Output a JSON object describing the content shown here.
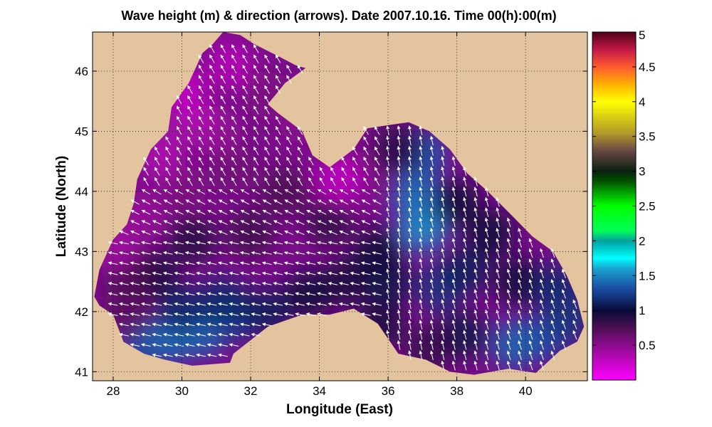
{
  "chart_data": {
    "type": "heatmap",
    "title": "Wave height (m) & direction (arrows). Date 2007.10.16. Time 00(h):00(m)",
    "xlabel": "Longitude (East)",
    "ylabel": "Latitude (North)",
    "xlim": [
      27.4,
      41.8
    ],
    "ylim": [
      40.85,
      46.65
    ],
    "x_ticks": [
      28,
      30,
      32,
      34,
      36,
      38,
      40
    ],
    "x_tick_labels": [
      "28",
      "30",
      "32",
      "34",
      "36",
      "38",
      "40"
    ],
    "y_ticks": [
      41,
      42,
      43,
      44,
      45,
      46
    ],
    "y_tick_labels": [
      "41",
      "42",
      "43",
      "44",
      "45",
      "46"
    ],
    "grid": true,
    "land_color": "#e3c49f",
    "colorbar": {
      "range": [
        0,
        5
      ],
      "ticks": [
        0.5,
        1,
        1.5,
        2,
        2.5,
        3,
        3.5,
        4,
        4.5,
        5
      ],
      "tick_labels": [
        "0.5",
        "1",
        "1.5",
        "2",
        "2.5",
        "3",
        "3.5",
        "4",
        "4.5",
        "5"
      ],
      "colormap": [
        {
          "v": 0.0,
          "c": "#ff00ff"
        },
        {
          "v": 0.4,
          "c": "#a30aa3"
        },
        {
          "v": 0.75,
          "c": "#4d0f52"
        },
        {
          "v": 1.0,
          "c": "#080b38"
        },
        {
          "v": 1.3,
          "c": "#1a4aa0"
        },
        {
          "v": 1.6,
          "c": "#1aa2d0"
        },
        {
          "v": 1.75,
          "c": "#00ffff"
        },
        {
          "v": 2.0,
          "c": "#00a0a0"
        },
        {
          "v": 2.15,
          "c": "#00ff55"
        },
        {
          "v": 2.5,
          "c": "#00ff00"
        },
        {
          "v": 2.85,
          "c": "#005500"
        },
        {
          "v": 3.0,
          "c": "#0a2010"
        },
        {
          "v": 3.3,
          "c": "#6b4a45"
        },
        {
          "v": 3.55,
          "c": "#b39a28"
        },
        {
          "v": 4.0,
          "c": "#ffff00"
        },
        {
          "v": 4.25,
          "c": "#ffb000"
        },
        {
          "v": 4.5,
          "c": "#ff5a30"
        },
        {
          "v": 4.75,
          "c": "#c21848"
        },
        {
          "v": 5.0,
          "c": "#4d0018"
        }
      ]
    },
    "sea_outline": [
      [
        27.45,
        42.25
      ],
      [
        27.6,
        42.7
      ],
      [
        28.0,
        43.2
      ],
      [
        28.4,
        43.45
      ],
      [
        28.6,
        43.8
      ],
      [
        28.7,
        44.2
      ],
      [
        29.1,
        44.7
      ],
      [
        29.6,
        45.0
      ],
      [
        29.7,
        45.4
      ],
      [
        30.2,
        45.8
      ],
      [
        30.6,
        46.3
      ],
      [
        30.9,
        46.45
      ],
      [
        31.2,
        46.65
      ],
      [
        31.7,
        46.6
      ],
      [
        32.1,
        46.45
      ],
      [
        32.8,
        46.25
      ],
      [
        33.3,
        46.1
      ],
      [
        33.6,
        46.05
      ],
      [
        33.0,
        45.8
      ],
      [
        32.5,
        45.45
      ],
      [
        32.8,
        45.3
      ],
      [
        33.5,
        45.0
      ],
      [
        33.8,
        44.6
      ],
      [
        34.3,
        44.4
      ],
      [
        35.0,
        44.7
      ],
      [
        35.4,
        45.05
      ],
      [
        36.0,
        45.1
      ],
      [
        36.6,
        45.15
      ],
      [
        37.2,
        45.0
      ],
      [
        37.8,
        44.7
      ],
      [
        38.3,
        44.3
      ],
      [
        38.9,
        44.0
      ],
      [
        39.6,
        43.6
      ],
      [
        40.2,
        43.25
      ],
      [
        40.8,
        43.0
      ],
      [
        41.2,
        42.6
      ],
      [
        41.5,
        42.2
      ],
      [
        41.7,
        41.75
      ],
      [
        41.5,
        41.5
      ],
      [
        41.0,
        41.35
      ],
      [
        40.3,
        40.98
      ],
      [
        39.5,
        41.05
      ],
      [
        38.5,
        40.95
      ],
      [
        37.8,
        41.0
      ],
      [
        37.1,
        41.2
      ],
      [
        36.3,
        41.3
      ],
      [
        35.7,
        41.8
      ],
      [
        35.0,
        42.05
      ],
      [
        34.3,
        41.95
      ],
      [
        33.5,
        41.95
      ],
      [
        32.5,
        41.75
      ],
      [
        31.5,
        41.3
      ],
      [
        31.4,
        41.15
      ],
      [
        30.3,
        41.1
      ],
      [
        29.5,
        41.2
      ],
      [
        28.9,
        41.3
      ],
      [
        28.3,
        41.5
      ],
      [
        28.0,
        41.95
      ],
      [
        27.6,
        42.1
      ]
    ],
    "wave_height_samples": [
      [
        29.0,
        41.5,
        1.35
      ],
      [
        29.8,
        41.55,
        1.4
      ],
      [
        30.6,
        41.65,
        1.4
      ],
      [
        31.5,
        41.9,
        1.25
      ],
      [
        30.0,
        42.05,
        1.15
      ],
      [
        31.2,
        42.2,
        1.15
      ],
      [
        32.5,
        42.0,
        1.1
      ],
      [
        33.7,
        42.3,
        1.0
      ],
      [
        34.8,
        42.5,
        0.95
      ],
      [
        36.0,
        42.5,
        1.05
      ],
      [
        37.0,
        43.4,
        1.55
      ],
      [
        36.8,
        43.9,
        1.45
      ],
      [
        37.0,
        44.6,
        1.35
      ],
      [
        36.3,
        44.7,
        0.9
      ],
      [
        37.5,
        42.4,
        1.2
      ],
      [
        38.3,
        42.7,
        1.1
      ],
      [
        39.0,
        43.3,
        1.0
      ],
      [
        39.8,
        42.5,
        1.0
      ],
      [
        40.6,
        41.6,
        1.3
      ],
      [
        39.7,
        41.45,
        1.4
      ],
      [
        38.2,
        41.6,
        1.05
      ],
      [
        40.9,
        42.4,
        1.15
      ],
      [
        41.3,
        41.9,
        1.2
      ],
      [
        37.2,
        41.4,
        0.85
      ],
      [
        35.8,
        41.8,
        0.95
      ],
      [
        30.3,
        43.2,
        0.9
      ],
      [
        29.2,
        42.6,
        0.95
      ],
      [
        28.4,
        42.6,
        0.75
      ],
      [
        28.0,
        43.1,
        0.4
      ],
      [
        28.8,
        43.6,
        0.45
      ],
      [
        30.0,
        44.0,
        0.55
      ],
      [
        31.5,
        44.4,
        0.6
      ],
      [
        33.0,
        44.0,
        0.75
      ],
      [
        32.0,
        43.3,
        0.8
      ],
      [
        34.3,
        43.5,
        0.85
      ],
      [
        35.0,
        44.3,
        0.6
      ],
      [
        34.6,
        44.2,
        0.25
      ],
      [
        31.0,
        45.0,
        0.45
      ],
      [
        30.3,
        45.2,
        0.35
      ],
      [
        30.0,
        45.7,
        0.25
      ],
      [
        31.4,
        46.1,
        0.3
      ],
      [
        32.5,
        45.6,
        0.55
      ],
      [
        29.4,
        44.6,
        0.35
      ],
      [
        28.4,
        42.0,
        0.7
      ],
      [
        35.7,
        43.0,
        1.0
      ],
      [
        38.0,
        43.8,
        1.0
      ],
      [
        33.5,
        45.2,
        0.5
      ]
    ],
    "wave_direction_field": {
      "x_range": [
        28.0,
        41.5
      ],
      "y_range": [
        41.1,
        46.5
      ],
      "description_deg": "arrows point toward WNW in the south/west, NNW in the north-west and east"
    }
  }
}
